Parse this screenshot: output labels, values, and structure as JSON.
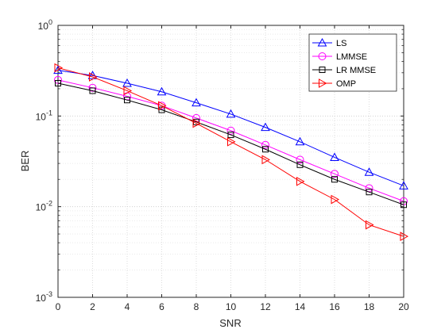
{
  "chart_data": {
    "type": "line",
    "xlabel": "SNR",
    "ylabel": "BER",
    "xlim": [
      0,
      20
    ],
    "ylim": [
      0.001,
      1
    ],
    "yscale": "log",
    "grid": true,
    "legend_position": "top-right",
    "x": [
      0,
      2,
      4,
      6,
      8,
      10,
      12,
      14,
      16,
      18,
      20
    ],
    "x_ticks": [
      "0",
      "2",
      "4",
      "6",
      "8",
      "10",
      "12",
      "14",
      "16",
      "18",
      "20"
    ],
    "y_ticks": [
      {
        "base": "10",
        "exp": "0"
      },
      {
        "base": "10",
        "exp": "-1"
      },
      {
        "base": "10",
        "exp": "-2"
      },
      {
        "base": "10",
        "exp": "-3"
      }
    ],
    "series": [
      {
        "name": "LS",
        "color": "#0000ff",
        "marker": "triangle-up",
        "values": [
          0.32,
          0.28,
          0.23,
          0.185,
          0.14,
          0.105,
          0.075,
          0.052,
          0.035,
          0.024,
          0.017
        ]
      },
      {
        "name": "LMMSE",
        "color": "#ff00ff",
        "marker": "circle",
        "values": [
          0.25,
          0.205,
          0.165,
          0.13,
          0.095,
          0.069,
          0.048,
          0.033,
          0.023,
          0.016,
          0.0115
        ]
      },
      {
        "name": "LR MMSE",
        "color": "#000000",
        "marker": "square",
        "values": [
          0.23,
          0.19,
          0.15,
          0.117,
          0.086,
          0.062,
          0.043,
          0.029,
          0.02,
          0.0145,
          0.0105
        ]
      },
      {
        "name": "OMP",
        "color": "#ff0000",
        "marker": "triangle-right",
        "values": [
          0.34,
          0.27,
          0.19,
          0.13,
          0.083,
          0.052,
          0.033,
          0.019,
          0.012,
          0.0063,
          0.0047
        ]
      }
    ]
  }
}
